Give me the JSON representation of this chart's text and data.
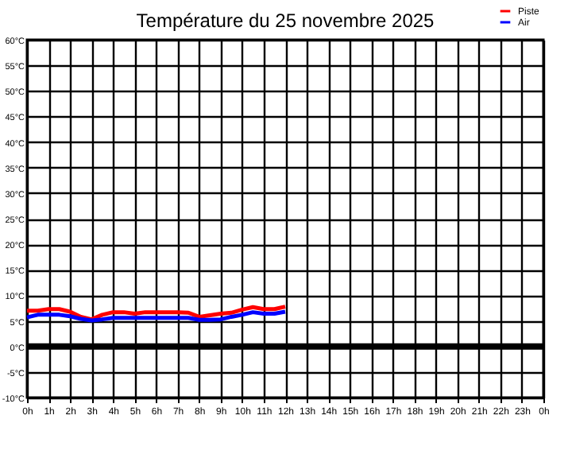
{
  "chart_data": {
    "type": "line",
    "title": "Température du 25 novembre 2025",
    "x": [
      "2025-11-25T00:00",
      "2025-11-25T00:30",
      "2025-11-25T01:00",
      "2025-11-25T01:30",
      "2025-11-25T02:00",
      "2025-11-25T02:30",
      "2025-11-25T03:00",
      "2025-11-25T03:30",
      "2025-11-25T04:00",
      "2025-11-25T04:30",
      "2025-11-25T05:00",
      "2025-11-25T05:30",
      "2025-11-25T06:00",
      "2025-11-25T06:30",
      "2025-11-25T07:00",
      "2025-11-25T07:30",
      "2025-11-25T08:00",
      "2025-11-25T08:30",
      "2025-11-25T09:00",
      "2025-11-25T09:30",
      "2025-11-25T10:00",
      "2025-11-25T10:30",
      "2025-11-25T11:00",
      "2025-11-25T11:30",
      "2025-11-25T12:00"
    ],
    "series": [
      {
        "name": "Piste",
        "color": "#ff0000",
        "values": [
          7.0,
          7.0,
          7.3,
          7.3,
          6.8,
          5.8,
          5.3,
          6.2,
          6.7,
          6.7,
          6.4,
          6.7,
          6.7,
          6.7,
          6.7,
          6.6,
          5.8,
          6.1,
          6.4,
          6.6,
          7.2,
          7.7,
          7.3,
          7.3,
          7.8
        ]
      },
      {
        "name": "Air",
        "color": "#0000ff",
        "values": [
          5.7,
          6.2,
          6.2,
          6.2,
          5.9,
          5.4,
          5.1,
          5.3,
          5.6,
          5.6,
          5.6,
          5.6,
          5.6,
          5.6,
          5.6,
          5.6,
          5.2,
          5.2,
          5.3,
          5.8,
          6.2,
          6.7,
          6.4,
          6.4,
          6.8
        ]
      }
    ],
    "xlim": [
      "2025-11-25T00:00",
      "2025-11-26T00:00"
    ],
    "xticks": [
      {
        "value": "2025-11-25T00:00",
        "label": "0h"
      },
      {
        "value": "2025-11-25T01:00",
        "label": "1h"
      },
      {
        "value": "2025-11-25T02:00",
        "label": "2h"
      },
      {
        "value": "2025-11-25T03:00",
        "label": "3h"
      },
      {
        "value": "2025-11-25T04:00",
        "label": "4h"
      },
      {
        "value": "2025-11-25T05:00",
        "label": "5h"
      },
      {
        "value": "2025-11-25T06:00",
        "label": "6h"
      },
      {
        "value": "2025-11-25T07:00",
        "label": "7h"
      },
      {
        "value": "2025-11-25T08:00",
        "label": "8h"
      },
      {
        "value": "2025-11-25T09:00",
        "label": "9h"
      },
      {
        "value": "2025-11-25T10:00",
        "label": "10h"
      },
      {
        "value": "2025-11-25T11:00",
        "label": "11h"
      },
      {
        "value": "2025-11-25T12:00",
        "label": "12h"
      },
      {
        "value": "2025-11-25T13:00",
        "label": "13h"
      },
      {
        "value": "2025-11-25T14:00",
        "label": "14h"
      },
      {
        "value": "2025-11-25T15:00",
        "label": "15h"
      },
      {
        "value": "2025-11-25T16:00",
        "label": "16h"
      },
      {
        "value": "2025-11-25T17:00",
        "label": "17h"
      },
      {
        "value": "2025-11-25T18:00",
        "label": "18h"
      },
      {
        "value": "2025-11-25T19:00",
        "label": "19h"
      },
      {
        "value": "2025-11-25T20:00",
        "label": "20h"
      },
      {
        "value": "2025-11-25T21:00",
        "label": "21h"
      },
      {
        "value": "2025-11-25T22:00",
        "label": "22h"
      },
      {
        "value": "2025-11-25T23:00",
        "label": "23h"
      },
      {
        "value": "2025-11-26T00:00",
        "label": "0h"
      }
    ],
    "ylim": [
      -10,
      60
    ],
    "yticks": [
      {
        "value": -10,
        "label": "-10°C"
      },
      {
        "value": -5,
        "label": "-5°C"
      },
      {
        "value": 0,
        "label": "0°C"
      },
      {
        "value": 5,
        "label": "5°C"
      },
      {
        "value": 10,
        "label": "10°C"
      },
      {
        "value": 15,
        "label": "15°C"
      },
      {
        "value": 20,
        "label": "20°C"
      },
      {
        "value": 25,
        "label": "25°C"
      },
      {
        "value": 30,
        "label": "30°C"
      },
      {
        "value": 35,
        "label": "35°C"
      },
      {
        "value": 40,
        "label": "40°C"
      },
      {
        "value": 45,
        "label": "45°C"
      },
      {
        "value": 50,
        "label": "50°C"
      },
      {
        "value": 55,
        "label": "55°C"
      },
      {
        "value": 60,
        "label": "60°C"
      }
    ],
    "ref_lines": [
      {
        "axis": "y",
        "value": 0,
        "color": "#000000"
      }
    ],
    "grid": true,
    "legend": "top right",
    "marker": "none",
    "line_style": "solid"
  }
}
